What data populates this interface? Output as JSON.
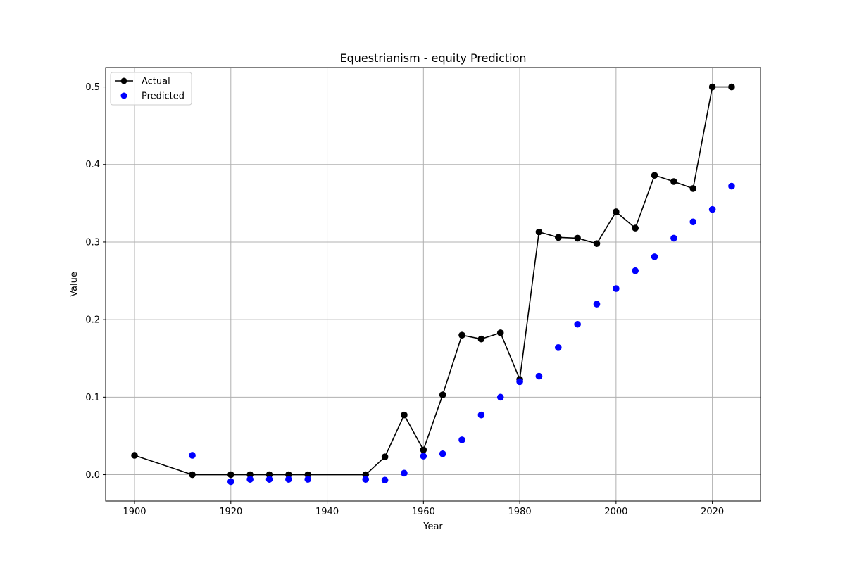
{
  "chart_data": {
    "type": "line",
    "title": "Equestrianism - equity Prediction",
    "xlabel": "Year",
    "ylabel": "Value",
    "xlim": [
      1894,
      2030
    ],
    "ylim": [
      -0.034,
      0.525
    ],
    "xticks": [
      1900,
      1920,
      1940,
      1960,
      1980,
      2000,
      2020
    ],
    "yticks": [
      0.0,
      0.1,
      0.2,
      0.3,
      0.4,
      0.5
    ],
    "ytick_labels": [
      "0.0",
      "0.1",
      "0.2",
      "0.3",
      "0.4",
      "0.5"
    ],
    "grid": true,
    "legend_position": "top-left",
    "series": [
      {
        "name": "Actual",
        "style": "line-with-markers",
        "color": "#000000",
        "x": [
          1900,
          1912,
          1920,
          1924,
          1928,
          1932,
          1936,
          1948,
          1952,
          1956,
          1960,
          1964,
          1968,
          1972,
          1976,
          1980,
          1984,
          1988,
          1992,
          1996,
          2000,
          2004,
          2008,
          2012,
          2016,
          2020,
          2024
        ],
        "y": [
          0.025,
          0.0,
          0.0,
          0.0,
          0.0,
          0.0,
          0.0,
          0.0,
          0.023,
          0.077,
          0.032,
          0.103,
          0.18,
          0.175,
          0.183,
          0.123,
          0.313,
          0.306,
          0.305,
          0.298,
          0.339,
          0.318,
          0.386,
          0.378,
          0.369,
          0.5,
          0.5
        ]
      },
      {
        "name": "Predicted",
        "style": "scatter",
        "color": "#0000ff",
        "x": [
          1912,
          1920,
          1924,
          1928,
          1932,
          1936,
          1948,
          1952,
          1956,
          1960,
          1964,
          1968,
          1972,
          1976,
          1980,
          1984,
          1988,
          1992,
          1996,
          2000,
          2004,
          2008,
          2012,
          2016,
          2020,
          2024
        ],
        "y": [
          0.025,
          -0.009,
          -0.006,
          -0.006,
          -0.006,
          -0.006,
          -0.006,
          -0.007,
          0.002,
          0.024,
          0.027,
          0.045,
          0.077,
          0.1,
          0.12,
          0.127,
          0.164,
          0.194,
          0.22,
          0.24,
          0.263,
          0.281,
          0.305,
          0.326,
          0.342,
          0.372
        ]
      }
    ]
  }
}
